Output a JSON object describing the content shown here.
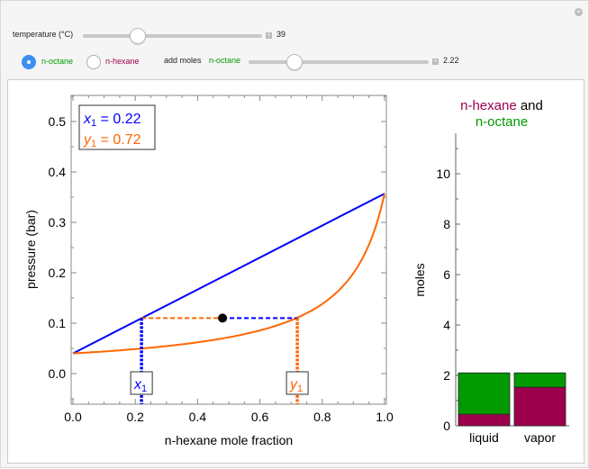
{
  "controls": {
    "temperature_label": "temperature (°C)",
    "temperature_value": "39",
    "temperature_fraction": 0.3,
    "radio": [
      {
        "label": "n-octane",
        "selected": true
      },
      {
        "label": "n-hexane",
        "selected": false
      }
    ],
    "add_moles_label": "add moles",
    "add_moles_species": "n-octane",
    "add_moles_value": "2.22",
    "add_moles_fraction": 0.25
  },
  "colors": {
    "liquid_line": "#0000ff",
    "vapor_line": "#ff6600",
    "hexane": "#9c004c",
    "octane": "#009a00"
  },
  "chart_data": [
    {
      "type": "line",
      "xlabel": "n-hexane mole fraction",
      "ylabel": "pressure (bar)",
      "xlim": [
        0,
        1
      ],
      "ylim": [
        -0.06,
        0.55
      ],
      "xticks": [
        "0.0",
        "0.2",
        "0.4",
        "0.6",
        "0.8",
        "1.0"
      ],
      "yticks": [
        "0.0",
        "0.1",
        "0.2",
        "0.3",
        "0.4",
        "0.5"
      ],
      "P_octane": 0.04,
      "P_hexane": 0.357,
      "x1": 0.22,
      "y1": 0.72,
      "pressure": 0.11,
      "overall_z": 0.48,
      "legend": {
        "x_label": "x",
        "y_label": "y",
        "sub": "1",
        "x_value": "0.22",
        "y_value": "0.72"
      },
      "markers": {
        "x": "x",
        "y": "y",
        "sub": "1"
      }
    },
    {
      "type": "bar",
      "stacked": true,
      "title_hexane": "n-hexane",
      "title_and": " and",
      "title_octane": "n-octane",
      "ylabel": "moles",
      "ylim": [
        0,
        11.5
      ],
      "yticks": [
        "0",
        "2",
        "4",
        "6",
        "8",
        "10"
      ],
      "categories": [
        "liquid",
        "vapor"
      ],
      "series": [
        {
          "name": "n-hexane",
          "values": [
            0.46,
            1.53
          ]
        },
        {
          "name": "n-octane",
          "values": [
            1.64,
            0.57
          ]
        }
      ]
    }
  ]
}
